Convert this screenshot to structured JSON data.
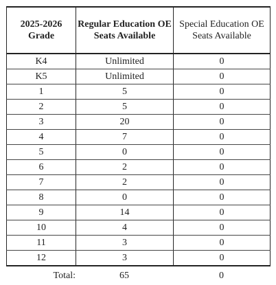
{
  "table": {
    "headers": {
      "grade": "2025-2026 Grade",
      "regular": "Regular Education OE Seats Available",
      "special": "Special Education OE Seats Available"
    },
    "rows": [
      {
        "grade": "K4",
        "regular": "Unlimited",
        "special": "0"
      },
      {
        "grade": "K5",
        "regular": "Unlimited",
        "special": "0"
      },
      {
        "grade": "1",
        "regular": "5",
        "special": "0"
      },
      {
        "grade": "2",
        "regular": "5",
        "special": "0"
      },
      {
        "grade": "3",
        "regular": "20",
        "special": "0"
      },
      {
        "grade": "4",
        "regular": "7",
        "special": "0"
      },
      {
        "grade": "5",
        "regular": "0",
        "special": "0"
      },
      {
        "grade": "6",
        "regular": "2",
        "special": "0"
      },
      {
        "grade": "7",
        "regular": "2",
        "special": "0"
      },
      {
        "grade": "8",
        "regular": "0",
        "special": "0"
      },
      {
        "grade": "9",
        "regular": "14",
        "special": "0"
      },
      {
        "grade": "10",
        "regular": "4",
        "special": "0"
      },
      {
        "grade": "11",
        "regular": "3",
        "special": "0"
      },
      {
        "grade": "12",
        "regular": "3",
        "special": "0"
      }
    ]
  },
  "totals": {
    "label": "Total:",
    "regular": "65",
    "special": "0"
  }
}
